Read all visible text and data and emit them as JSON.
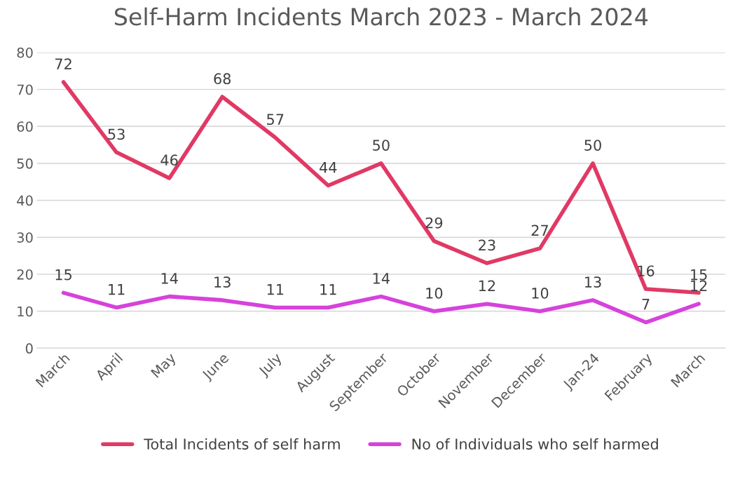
{
  "chart_data": {
    "type": "line",
    "title": "Self-Harm Incidents March 2023 - March 2024",
    "categories": [
      "March",
      "April",
      "May",
      "June",
      "July",
      "August",
      "September",
      "October",
      "November",
      "December",
      "Jan-24",
      "February",
      "March"
    ],
    "series": [
      {
        "name": "Total Incidents of self harm",
        "color": "#e03a64",
        "values": [
          72,
          53,
          46,
          68,
          57,
          44,
          50,
          29,
          23,
          27,
          50,
          16,
          15
        ]
      },
      {
        "name": "No of Individuals who self harmed",
        "color": "#d642dc",
        "values": [
          15,
          11,
          14,
          13,
          11,
          11,
          14,
          10,
          12,
          10,
          13,
          7,
          12
        ]
      }
    ],
    "ylim": [
      0,
      80
    ],
    "yticks": [
      0,
      10,
      20,
      30,
      40,
      50,
      60,
      70,
      80
    ],
    "grid": "y",
    "legend": "bottom",
    "data_labels": true,
    "marker": "none",
    "line_style": "solid"
  }
}
